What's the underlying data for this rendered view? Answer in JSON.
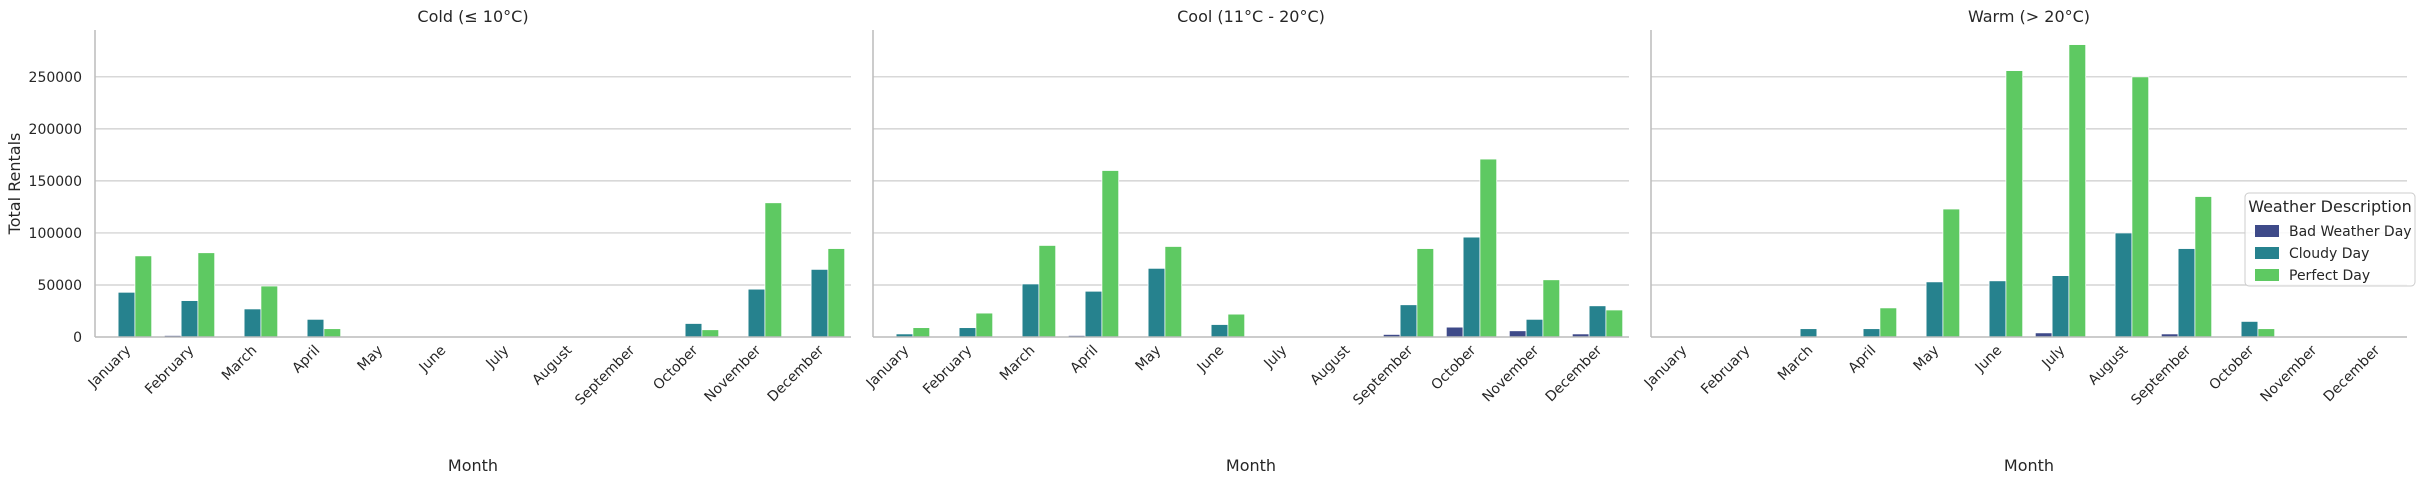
{
  "chart_data": {
    "type": "bar",
    "layout": "faceted",
    "xlabel": "Month",
    "ylabel": "Total Rentals",
    "ylim": [
      0,
      295000
    ],
    "yticks": [
      0,
      50000,
      100000,
      150000,
      200000,
      250000
    ],
    "grid": "y",
    "legend": {
      "title": "Weather Description",
      "placement": "center-right",
      "entries": [
        "Bad Weather Day",
        "Cloudy Day",
        "Perfect Day"
      ]
    },
    "colors": {
      "Bad Weather Day": "#3e4a89",
      "Cloudy Day": "#26828e",
      "Perfect Day": "#5ec962"
    },
    "categories": [
      "January",
      "February",
      "March",
      "April",
      "May",
      "June",
      "July",
      "August",
      "September",
      "October",
      "November",
      "December"
    ],
    "panels": [
      {
        "title": "Cold (≤ 10°C)",
        "series": [
          {
            "name": "Bad Weather Day",
            "values": [
              0,
              1500,
              0,
              0,
              0,
              0,
              0,
              0,
              0,
              0,
              0,
              0
            ]
          },
          {
            "name": "Cloudy Day",
            "values": [
              43000,
              35000,
              27000,
              17000,
              0,
              0,
              0,
              0,
              0,
              13000,
              46000,
              65000
            ]
          },
          {
            "name": "Perfect Day",
            "values": [
              78000,
              81000,
              49000,
              8000,
              0,
              0,
              0,
              0,
              0,
              7000,
              129000,
              85000
            ]
          }
        ]
      },
      {
        "title": "Cool (11°C - 20°C)",
        "series": [
          {
            "name": "Bad Weather Day",
            "values": [
              0,
              0,
              0,
              1500,
              0,
              0,
              0,
              0,
              2500,
              9500,
              6000,
              3000
            ]
          },
          {
            "name": "Cloudy Day",
            "values": [
              3000,
              9000,
              51000,
              44000,
              66000,
              12000,
              0,
              0,
              31000,
              96000,
              17000,
              30000
            ]
          },
          {
            "name": "Perfect Day",
            "values": [
              9000,
              23000,
              88000,
              160000,
              87000,
              22000,
              0,
              0,
              85000,
              171000,
              55000,
              26000
            ]
          }
        ]
      },
      {
        "title": "Warm (> 20°C)",
        "series": [
          {
            "name": "Bad Weather Day",
            "values": [
              0,
              0,
              0,
              0,
              0,
              0,
              4000,
              0,
              3000,
              0,
              0,
              0
            ]
          },
          {
            "name": "Cloudy Day",
            "values": [
              0,
              0,
              8000,
              8000,
              53000,
              54000,
              59000,
              100000,
              85000,
              15000,
              0,
              0
            ]
          },
          {
            "name": "Perfect Day",
            "values": [
              0,
              0,
              0,
              28000,
              123000,
              256000,
              281000,
              250000,
              135000,
              8000,
              0,
              0
            ]
          }
        ]
      }
    ]
  }
}
